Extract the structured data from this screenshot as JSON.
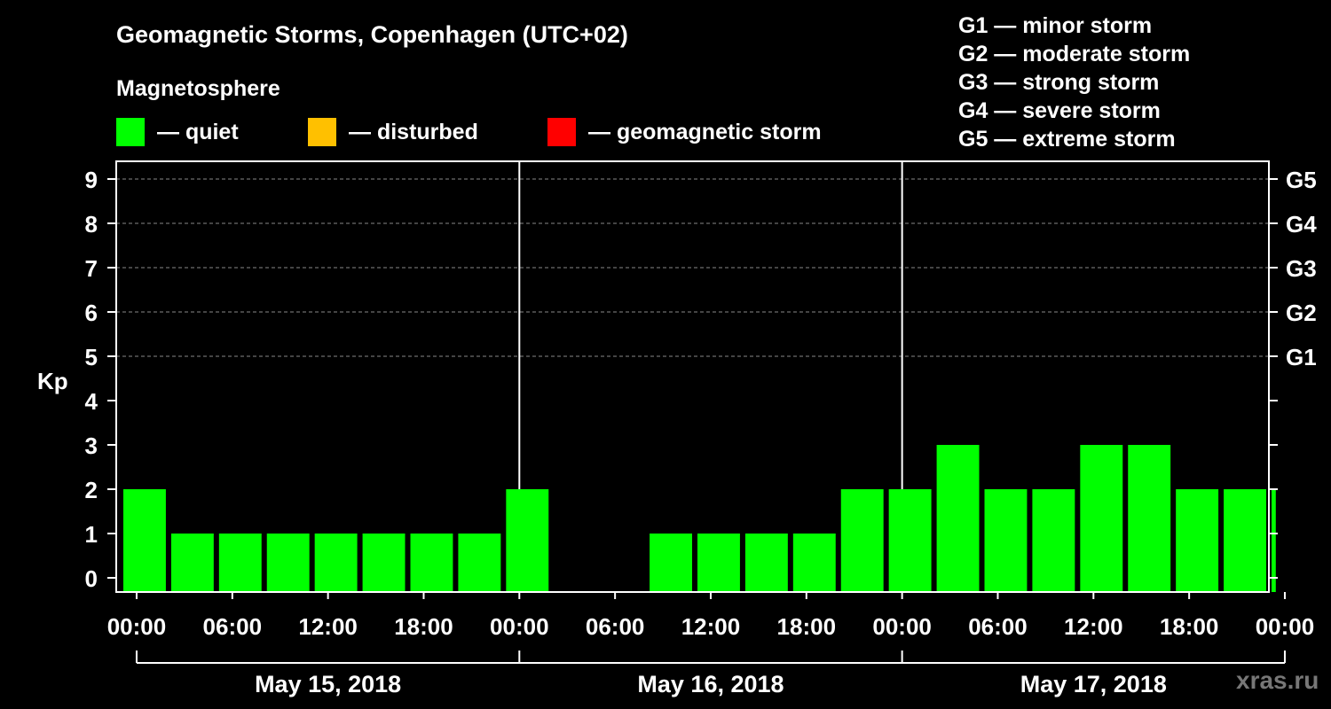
{
  "title": "Geomagnetic Storms, Copenhagen (UTC+02)",
  "subtitle": "Magnetosphere",
  "legend": [
    {
      "label": "— quiet",
      "color": "#00ff00"
    },
    {
      "label": "— disturbed",
      "color": "#ffc000"
    },
    {
      "label": "— geomagnetic storm",
      "color": "#ff0000"
    }
  ],
  "storm_scale": [
    "G1 — minor storm",
    "G2 — moderate storm",
    "G3 — strong storm",
    "G4 — severe storm",
    "G5 — extreme storm"
  ],
  "watermark": "xras.ru",
  "chart_data": {
    "type": "bar",
    "title": "Geomagnetic Storms, Copenhagen (UTC+02)",
    "ylabel": "Kp",
    "ylim": [
      0,
      9
    ],
    "y_ticks": [
      "0",
      "1",
      "2",
      "3",
      "4",
      "5",
      "6",
      "7",
      "8",
      "9"
    ],
    "right_axis_labels": [
      {
        "kp": 5,
        "label": "G1"
      },
      {
        "kp": 6,
        "label": "G2"
      },
      {
        "kp": 7,
        "label": "G3"
      },
      {
        "kp": 8,
        "label": "G4"
      },
      {
        "kp": 9,
        "label": "G5"
      }
    ],
    "x_tick_labels": [
      "00:00",
      "06:00",
      "12:00",
      "18:00",
      "00:00",
      "06:00",
      "12:00",
      "18:00",
      "00:00",
      "06:00",
      "12:00",
      "18:00",
      "00:00"
    ],
    "x_start_hour": -1,
    "x_end_hour": 71,
    "day_labels": [
      "May 15, 2018",
      "May 16, 2018",
      "May 17, 2018"
    ],
    "bar_color": "#00ff00",
    "bars": [
      {
        "start_hour": -1,
        "end_hour": 2,
        "kp": 2
      },
      {
        "start_hour": 2,
        "end_hour": 5,
        "kp": 1
      },
      {
        "start_hour": 5,
        "end_hour": 8,
        "kp": 1
      },
      {
        "start_hour": 8,
        "end_hour": 11,
        "kp": 1
      },
      {
        "start_hour": 11,
        "end_hour": 14,
        "kp": 1
      },
      {
        "start_hour": 14,
        "end_hour": 17,
        "kp": 1
      },
      {
        "start_hour": 17,
        "end_hour": 20,
        "kp": 1
      },
      {
        "start_hour": 20,
        "end_hour": 23,
        "kp": 1
      },
      {
        "start_hour": 23,
        "end_hour": 26,
        "kp": 2
      },
      {
        "start_hour": 26,
        "end_hour": 29,
        "kp": 0
      },
      {
        "start_hour": 29,
        "end_hour": 32,
        "kp": 0
      },
      {
        "start_hour": 32,
        "end_hour": 35,
        "kp": 1
      },
      {
        "start_hour": 35,
        "end_hour": 38,
        "kp": 1
      },
      {
        "start_hour": 38,
        "end_hour": 41,
        "kp": 1
      },
      {
        "start_hour": 41,
        "end_hour": 44,
        "kp": 1
      },
      {
        "start_hour": 44,
        "end_hour": 47,
        "kp": 2
      },
      {
        "start_hour": 47,
        "end_hour": 50,
        "kp": 2
      },
      {
        "start_hour": 50,
        "end_hour": 53,
        "kp": 3
      },
      {
        "start_hour": 53,
        "end_hour": 56,
        "kp": 2
      },
      {
        "start_hour": 56,
        "end_hour": 59,
        "kp": 2
      },
      {
        "start_hour": 59,
        "end_hour": 62,
        "kp": 3
      },
      {
        "start_hour": 62,
        "end_hour": 65,
        "kp": 3
      },
      {
        "start_hour": 65,
        "end_hour": 68,
        "kp": 2
      },
      {
        "start_hour": 68,
        "end_hour": 71,
        "kp": 2
      },
      {
        "start_hour": 71,
        "end_hour": 71.6,
        "kp": 2
      }
    ]
  }
}
